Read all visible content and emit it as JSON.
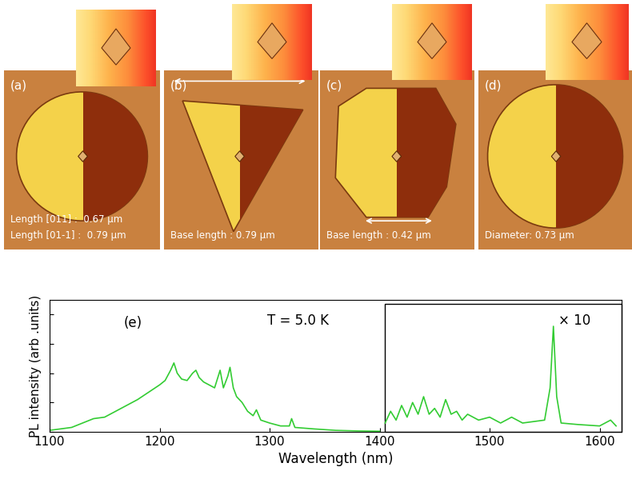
{
  "panels": [
    {
      "label": "(a)",
      "texts": [
        "Length [011] :  0.67 μm",
        "Length [01-1] :  0.79 μm"
      ]
    },
    {
      "label": "(b)",
      "texts": [
        "Base length : 0.79 μm"
      ]
    },
    {
      "label": "(c)",
      "texts": [
        "Base length : 0.42 μm"
      ]
    },
    {
      "label": "(d)",
      "texts": [
        "Diameter: 0.73 μm"
      ]
    }
  ],
  "chart_data": {
    "type": "line",
    "label": "(e)",
    "annotations": [
      "T = 5.0 K",
      "× 10"
    ],
    "xlabel": "Wavelength (nm)",
    "ylabel": "PL intensity (arb .units)",
    "xlim": [
      1100,
      1620
    ],
    "xticks": [
      1100,
      1200,
      1300,
      1400,
      1500,
      1600
    ],
    "ylim": [
      0,
      4.5
    ],
    "yticks": [
      0,
      1,
      2,
      3,
      4
    ],
    "tick_labels": "x",
    "series": [
      {
        "color": "#33cc33",
        "x": [
          1100,
          1120,
          1140,
          1150,
          1160,
          1170,
          1180,
          1190,
          1200,
          1205,
          1210,
          1213,
          1216,
          1220,
          1225,
          1230,
          1233,
          1236,
          1240,
          1245,
          1250,
          1255,
          1258,
          1262,
          1264,
          1267,
          1270,
          1275,
          1280,
          1285,
          1288,
          1292,
          1300,
          1310,
          1318,
          1320,
          1323,
          1340,
          1360,
          1380,
          1400
        ],
        "values": [
          0.05,
          0.15,
          0.45,
          0.5,
          0.7,
          0.9,
          1.1,
          1.35,
          1.6,
          1.75,
          2.1,
          2.35,
          2.0,
          1.8,
          1.75,
          2.0,
          2.1,
          1.85,
          1.7,
          1.6,
          1.5,
          2.1,
          1.5,
          1.9,
          2.2,
          1.5,
          1.2,
          1.0,
          0.7,
          0.55,
          0.75,
          0.4,
          0.3,
          0.2,
          0.2,
          0.45,
          0.15,
          0.1,
          0.05,
          0.03,
          0.02
        ]
      },
      {
        "color": "#33cc33",
        "x": [
          1405,
          1410,
          1415,
          1420,
          1425,
          1430,
          1435,
          1440,
          1445,
          1450,
          1455,
          1460,
          1465,
          1470,
          1475,
          1480,
          1490,
          1500,
          1510,
          1520,
          1530,
          1540,
          1550,
          1555,
          1558,
          1561,
          1565,
          1580,
          1600,
          1610,
          1615
        ],
        "values": [
          0.3,
          0.7,
          0.4,
          0.9,
          0.5,
          1.0,
          0.6,
          1.2,
          0.6,
          0.8,
          0.5,
          1.1,
          0.6,
          0.7,
          0.4,
          0.6,
          0.4,
          0.5,
          0.3,
          0.5,
          0.3,
          0.35,
          0.4,
          1.5,
          3.6,
          1.2,
          0.3,
          0.25,
          0.2,
          0.4,
          0.2
        ]
      }
    ]
  }
}
